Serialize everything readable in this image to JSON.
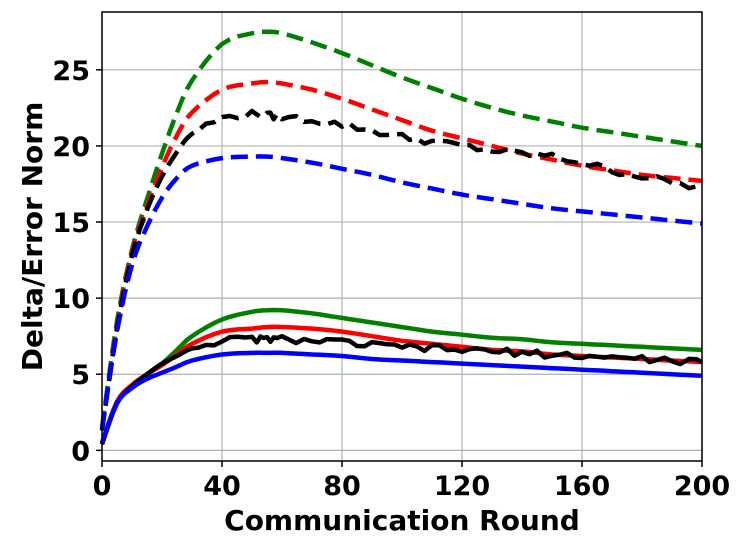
{
  "chart_data": {
    "type": "line",
    "title": "",
    "xlabel": "Communication Round",
    "ylabel": "Delta/Error Norm",
    "xlim": [
      0,
      200
    ],
    "ylim": [
      -0.7,
      28.8
    ],
    "xticks": [
      0,
      40,
      80,
      120,
      160,
      200
    ],
    "yticks": [
      0,
      5,
      10,
      15,
      20,
      25
    ],
    "xtick_labels": [
      "0",
      "40",
      "80",
      "120",
      "160",
      "200"
    ],
    "ytick_labels": [
      "0",
      "5",
      "10",
      "15",
      "20",
      "25"
    ],
    "grid": true,
    "legend": "none",
    "x": [
      0,
      5,
      10,
      15,
      20,
      25,
      30,
      40,
      50,
      55,
      60,
      70,
      80,
      90,
      100,
      110,
      120,
      130,
      140,
      150,
      160,
      170,
      180,
      190,
      200
    ],
    "series": [
      {
        "color": "#008000",
        "style": "dashed",
        "values": [
          1.5,
          8.5,
          13.2,
          16.5,
          19.5,
          22.2,
          24.3,
          26.7,
          27.4,
          27.5,
          27.4,
          26.8,
          26.1,
          25.3,
          24.5,
          23.8,
          23.1,
          22.5,
          22.0,
          21.6,
          21.2,
          20.9,
          20.6,
          20.3,
          20.0
        ]
      },
      {
        "color": "#ff0000",
        "style": "dashed",
        "values": [
          1.4,
          8.2,
          13.0,
          16.0,
          18.6,
          20.7,
          22.2,
          23.7,
          24.1,
          24.2,
          24.1,
          23.7,
          23.1,
          22.4,
          21.7,
          21.0,
          20.5,
          20.0,
          19.5,
          19.1,
          18.7,
          18.4,
          18.1,
          17.9,
          17.7
        ]
      },
      {
        "color": "#000000",
        "style": "dashed",
        "noisy": true,
        "values": [
          1.3,
          8.0,
          12.8,
          15.8,
          18.0,
          19.6,
          20.8,
          21.8,
          22.1,
          22.0,
          21.9,
          21.7,
          21.4,
          21.0,
          20.6,
          20.3,
          20.0,
          19.7,
          19.5,
          19.3,
          18.9,
          18.4,
          18.0,
          17.6,
          17.2
        ]
      },
      {
        "color": "#0000ff",
        "style": "dashed",
        "values": [
          1.4,
          7.8,
          12.2,
          14.7,
          16.6,
          17.9,
          18.7,
          19.2,
          19.3,
          19.3,
          19.2,
          18.9,
          18.5,
          18.1,
          17.6,
          17.2,
          16.8,
          16.5,
          16.2,
          15.9,
          15.7,
          15.5,
          15.3,
          15.1,
          14.9
        ]
      },
      {
        "color": "#008000",
        "style": "solid",
        "values": [
          0.5,
          3.2,
          4.3,
          5.0,
          5.7,
          6.6,
          7.5,
          8.6,
          9.1,
          9.2,
          9.2,
          9.0,
          8.7,
          8.4,
          8.1,
          7.8,
          7.6,
          7.4,
          7.3,
          7.1,
          7.0,
          6.9,
          6.8,
          6.7,
          6.6
        ]
      },
      {
        "color": "#ff0000",
        "style": "solid",
        "values": [
          0.5,
          3.2,
          4.3,
          5.0,
          5.6,
          6.3,
          7.0,
          7.8,
          8.0,
          8.1,
          8.1,
          8.0,
          7.8,
          7.5,
          7.2,
          7.0,
          6.8,
          6.6,
          6.5,
          6.3,
          6.2,
          6.1,
          6.0,
          5.9,
          5.8
        ]
      },
      {
        "color": "#000000",
        "style": "solid",
        "noisy": true,
        "values": [
          0.4,
          3.1,
          4.2,
          5.0,
          5.7,
          6.2,
          6.7,
          7.2,
          7.3,
          7.3,
          7.3,
          7.2,
          7.1,
          6.9,
          6.8,
          6.7,
          6.6,
          6.5,
          6.4,
          6.3,
          6.2,
          6.1,
          6.0,
          5.9,
          5.8
        ]
      },
      {
        "color": "#0000ff",
        "style": "solid",
        "values": [
          0.5,
          3.1,
          4.1,
          4.7,
          5.1,
          5.5,
          5.9,
          6.3,
          6.4,
          6.4,
          6.4,
          6.3,
          6.2,
          6.0,
          5.9,
          5.8,
          5.7,
          5.6,
          5.5,
          5.4,
          5.3,
          5.2,
          5.1,
          5.0,
          4.9
        ]
      }
    ]
  }
}
